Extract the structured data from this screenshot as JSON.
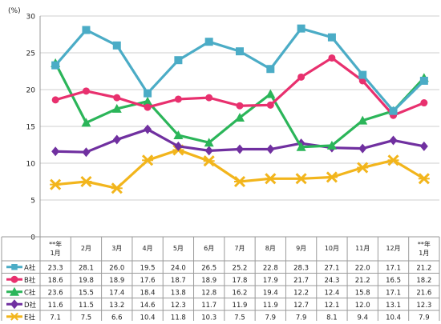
{
  "chart_data": {
    "type": "line",
    "y_unit_label": "(%)",
    "ylim": [
      0,
      30
    ],
    "yticks": [
      0,
      5,
      10,
      15,
      20,
      25,
      30
    ],
    "grid": "horizontal",
    "categories": [
      "**年\n1月",
      "2月",
      "3月",
      "4月",
      "5月",
      "6月",
      "7月",
      "8月",
      "9月",
      "10月",
      "11月",
      "12月",
      "**年\n1月"
    ],
    "series": [
      {
        "name": "A社",
        "color": "#4bacc6",
        "marker": "square",
        "values": [
          23.3,
          28.1,
          26.0,
          19.5,
          24.0,
          26.5,
          25.2,
          22.8,
          28.3,
          27.1,
          22.0,
          17.1,
          21.2
        ]
      },
      {
        "name": "B社",
        "color": "#e8306e",
        "marker": "circle",
        "values": [
          18.6,
          19.8,
          18.9,
          17.6,
          18.7,
          18.9,
          17.8,
          17.9,
          21.7,
          24.3,
          21.2,
          16.5,
          18.2
        ]
      },
      {
        "name": "C社",
        "color": "#2bb559",
        "marker": "triangle",
        "values": [
          23.6,
          15.5,
          17.4,
          18.4,
          13.8,
          12.8,
          16.2,
          19.4,
          12.2,
          12.4,
          15.8,
          17.1,
          21.6
        ]
      },
      {
        "name": "D社",
        "color": "#7030a0",
        "marker": "diamond",
        "values": [
          11.6,
          11.5,
          13.2,
          14.6,
          12.3,
          11.7,
          11.9,
          11.9,
          12.7,
          12.1,
          12.0,
          13.1,
          12.3
        ]
      },
      {
        "name": "E社",
        "color": "#f2b51c",
        "marker": "star",
        "values": [
          7.1,
          7.5,
          6.6,
          10.4,
          11.8,
          10.3,
          7.5,
          7.9,
          7.9,
          8.1,
          9.4,
          10.4,
          7.9
        ]
      }
    ],
    "table_values": [
      [
        "23.3",
        "28.1",
        "26.0",
        "19.5",
        "24.0",
        "26.5",
        "25.2",
        "22.8",
        "28.3",
        "27.1",
        "22.0",
        "17.1",
        "21.2"
      ],
      [
        "18.6",
        "19.8",
        "18.9",
        "17.6",
        "18.7",
        "18.9",
        "17.8",
        "17.9",
        "21.7",
        "24.3",
        "21.2",
        "16.5",
        "18.2"
      ],
      [
        "23.6",
        "15.5",
        "17.4",
        "18.4",
        "13.8",
        "12.8",
        "16.2",
        "19.4",
        "12.2",
        "12.4",
        "15.8",
        "17.1",
        "21.6"
      ],
      [
        "11.6",
        "11.5",
        "13.2",
        "14.6",
        "12.3",
        "11.7",
        "11.9",
        "11.9",
        "12.7",
        "12.1",
        "12.0",
        "13.1",
        "12.3"
      ],
      [
        "7.1",
        "7.5",
        "6.6",
        "10.4",
        "11.8",
        "10.3",
        "7.5",
        "7.9",
        "7.9",
        "8.1",
        "9.4",
        "10.4",
        "7.9"
      ]
    ]
  }
}
